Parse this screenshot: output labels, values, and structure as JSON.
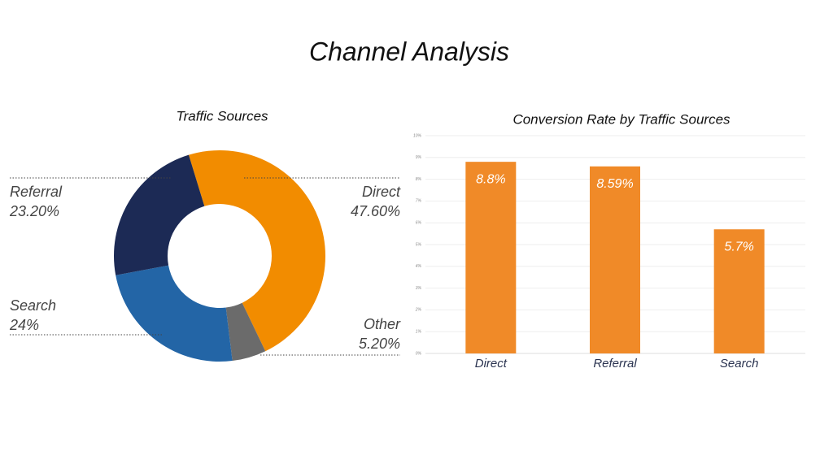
{
  "title": "Channel Analysis",
  "chart_data": [
    {
      "type": "pie",
      "title": "Traffic Sources",
      "categories": [
        "Direct",
        "Other",
        "Search",
        "Referral"
      ],
      "values": [
        47.6,
        5.2,
        24,
        23.2
      ],
      "value_labels": [
        "47.60%",
        "5.20%",
        "24%",
        "23.20%"
      ],
      "colors": [
        "#f28c00",
        "#6b6b6b",
        "#2365a6",
        "#1c2a55"
      ]
    },
    {
      "type": "bar",
      "title": "Conversion Rate by Traffic Sources",
      "categories": [
        "Direct",
        "Referral",
        "Search"
      ],
      "values": [
        8.8,
        8.59,
        5.7
      ],
      "value_labels": [
        "8.8%",
        "8.59%",
        "5.7%"
      ],
      "color": "#f08a28",
      "ylim": [
        0,
        10
      ],
      "yticks": [
        {
          "value": 0,
          "label": "0%"
        },
        {
          "value": 1,
          "label": "1%"
        },
        {
          "value": 2,
          "label": "2%"
        },
        {
          "value": 3,
          "label": "3%"
        },
        {
          "value": 4,
          "label": "4%"
        },
        {
          "value": 5,
          "label": "5%"
        },
        {
          "value": 6,
          "label": "6%"
        },
        {
          "value": 7,
          "label": "7%"
        },
        {
          "value": 8,
          "label": "8%"
        },
        {
          "value": 9,
          "label": "9%"
        },
        {
          "value": 10,
          "label": "10%"
        }
      ],
      "grid": true
    }
  ]
}
